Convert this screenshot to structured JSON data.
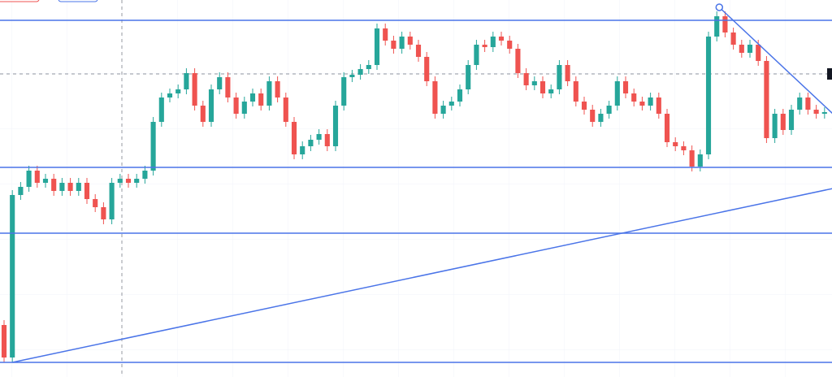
{
  "chart_data": {
    "type": "candlestick",
    "up_color": "#26a69a",
    "down_color": "#ef5350",
    "line_color": "#4a74e8",
    "xlim": [
      -0.49,
      99.9
    ],
    "ylim": [
      0,
      464
    ],
    "open": [
      64,
      24,
      224,
      234,
      254,
      239,
      244,
      229,
      239,
      229,
      239,
      219,
      209,
      194,
      239,
      244,
      239,
      244,
      254,
      314,
      344,
      349,
      354,
      374,
      334,
      314,
      354,
      369,
      344,
      324,
      339,
      349,
      334,
      364,
      344,
      314,
      274,
      284,
      292,
      299,
      284,
      334,
      369,
      372,
      379,
      384,
      429,
      414,
      404,
      419,
      409,
      394,
      364,
      324,
      334,
      339,
      354,
      384,
      409,
      406,
      419,
      414,
      404,
      374,
      359,
      364,
      349,
      354,
      384,
      364,
      339,
      329,
      314,
      324,
      334,
      364,
      349,
      339,
      334,
      344,
      324,
      289,
      284,
      279,
      259,
      274,
      419,
      444,
      424,
      409,
      399,
      409,
      389,
      294,
      324,
      304,
      329,
      344,
      329,
      324
    ],
    "high": [
      70,
      230,
      240,
      260,
      260,
      250,
      250,
      245,
      245,
      245,
      245,
      225,
      215,
      245,
      250,
      250,
      250,
      260,
      320,
      350,
      355,
      360,
      380,
      380,
      340,
      360,
      375,
      375,
      350,
      345,
      355,
      355,
      370,
      370,
      350,
      320,
      290,
      298,
      305,
      305,
      340,
      375,
      378,
      385,
      390,
      435,
      435,
      420,
      425,
      425,
      415,
      400,
      370,
      340,
      345,
      360,
      390,
      415,
      415,
      425,
      425,
      420,
      410,
      380,
      370,
      370,
      360,
      390,
      390,
      370,
      345,
      335,
      330,
      340,
      370,
      370,
      355,
      345,
      350,
      350,
      330,
      295,
      290,
      285,
      280,
      425,
      450,
      450,
      430,
      415,
      415,
      415,
      395,
      330,
      330,
      335,
      350,
      350,
      335,
      332
    ],
    "low": [
      18,
      18,
      218,
      228,
      233,
      233,
      223,
      223,
      223,
      223,
      213,
      203,
      188,
      188,
      233,
      233,
      233,
      238,
      248,
      308,
      338,
      343,
      348,
      328,
      308,
      308,
      348,
      338,
      318,
      318,
      333,
      328,
      328,
      338,
      308,
      268,
      268,
      278,
      286,
      278,
      278,
      328,
      363,
      366,
      373,
      378,
      408,
      398,
      398,
      403,
      388,
      358,
      318,
      318,
      328,
      333,
      348,
      378,
      400,
      400,
      408,
      398,
      368,
      353,
      353,
      343,
      343,
      348,
      358,
      333,
      323,
      308,
      308,
      318,
      328,
      343,
      333,
      328,
      328,
      318,
      283,
      278,
      273,
      253,
      253,
      268,
      413,
      418,
      403,
      393,
      393,
      383,
      288,
      288,
      298,
      298,
      323,
      323,
      318,
      318
    ],
    "close": [
      24,
      224,
      234,
      254,
      239,
      244,
      229,
      239,
      229,
      239,
      219,
      209,
      194,
      239,
      244,
      239,
      244,
      254,
      314,
      344,
      349,
      354,
      374,
      334,
      314,
      354,
      369,
      344,
      324,
      339,
      349,
      334,
      364,
      344,
      314,
      274,
      284,
      292,
      299,
      284,
      334,
      369,
      372,
      379,
      384,
      429,
      414,
      404,
      419,
      409,
      394,
      364,
      324,
      334,
      339,
      354,
      384,
      409,
      406,
      419,
      414,
      404,
      374,
      359,
      364,
      349,
      354,
      384,
      364,
      339,
      329,
      314,
      324,
      334,
      364,
      349,
      339,
      334,
      344,
      324,
      289,
      284,
      279,
      259,
      274,
      419,
      444,
      424,
      409,
      399,
      409,
      389,
      294,
      324,
      304,
      329,
      344,
      329,
      324,
      326
    ],
    "levels": [
      439,
      258,
      177,
      18
    ],
    "trendlines": [
      {
        "x": [
          1,
          100
        ],
        "y": [
          18,
          232
        ]
      },
      {
        "x": [
          86.3,
          100
        ],
        "y": [
          455,
          324
        ]
      }
    ]
  }
}
